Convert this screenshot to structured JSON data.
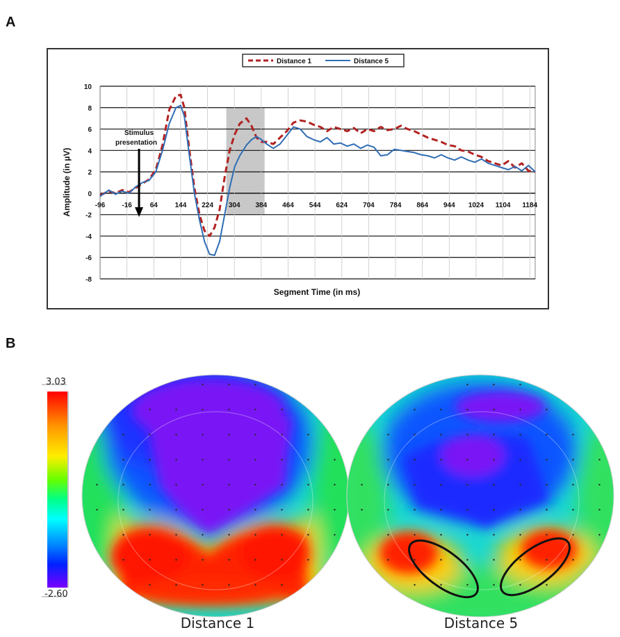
{
  "panels": {
    "a_label": "A",
    "b_label": "B"
  },
  "chart_data": {
    "type": "line",
    "xlabel": "Segment Time (in ms)",
    "ylabel": "Amplitude (in µV)",
    "xlim": [
      -96,
      1200
    ],
    "ylim": [
      -8,
      10
    ],
    "yticks": [
      -8,
      -6,
      -4,
      -2,
      0,
      2,
      4,
      6,
      8,
      10
    ],
    "xticks": [
      -96,
      -16,
      64,
      144,
      224,
      304,
      384,
      464,
      544,
      624,
      704,
      784,
      864,
      944,
      1024,
      1104,
      1184
    ],
    "xtick_labels": [
      "-96",
      "-16",
      "64",
      "144",
      "224",
      "304",
      "384",
      "464",
      "544",
      "624",
      "704",
      "784",
      "864",
      "944",
      "1024",
      "1104",
      "1184"
    ],
    "highlight_window": [
      280,
      394
    ],
    "annotation": {
      "line1": "Stimulus",
      "line2": "presentation",
      "x": 20
    },
    "legend_position": "top-center",
    "series": [
      {
        "name": "Distance 1",
        "color": "#b22222",
        "style": "dashed",
        "x": [
          -96,
          -70,
          -50,
          -30,
          -10,
          10,
          30,
          50,
          70,
          90,
          110,
          130,
          144,
          155,
          170,
          185,
          200,
          215,
          230,
          245,
          260,
          275,
          290,
          305,
          320,
          340,
          355,
          370,
          385,
          400,
          420,
          440,
          460,
          480,
          500,
          520,
          540,
          560,
          580,
          600,
          620,
          640,
          660,
          680,
          700,
          720,
          740,
          760,
          780,
          800,
          820,
          840,
          860,
          880,
          900,
          920,
          940,
          960,
          980,
          1000,
          1020,
          1040,
          1060,
          1080,
          1100,
          1120,
          1140,
          1160,
          1180,
          1200
        ],
        "values": [
          -0.2,
          0.2,
          0.0,
          0.3,
          0.1,
          0.5,
          0.9,
          1.3,
          2.2,
          4.5,
          7.8,
          9.1,
          9.2,
          8.0,
          4.0,
          0.5,
          -2.0,
          -3.5,
          -4.0,
          -3.2,
          -1.5,
          1.5,
          4.0,
          5.5,
          6.5,
          7.0,
          6.3,
          5.2,
          4.8,
          4.8,
          4.6,
          5.2,
          5.8,
          6.6,
          6.8,
          6.7,
          6.4,
          6.2,
          5.8,
          6.2,
          6.0,
          5.8,
          6.1,
          5.6,
          6.0,
          5.8,
          6.2,
          5.9,
          6.0,
          6.3,
          6.0,
          5.8,
          5.5,
          5.2,
          5.0,
          4.8,
          4.5,
          4.4,
          4.0,
          3.9,
          3.6,
          3.4,
          3.0,
          2.8,
          2.6,
          3.0,
          2.4,
          2.8,
          2.1,
          2.0
        ]
      },
      {
        "name": "Distance 5",
        "color": "#2f6db5",
        "style": "solid",
        "x": [
          -96,
          -70,
          -50,
          -30,
          -10,
          10,
          30,
          50,
          70,
          90,
          110,
          130,
          144,
          155,
          170,
          185,
          200,
          215,
          230,
          245,
          260,
          275,
          290,
          305,
          320,
          340,
          355,
          370,
          385,
          400,
          420,
          440,
          460,
          480,
          500,
          520,
          540,
          560,
          580,
          600,
          620,
          640,
          660,
          680,
          700,
          720,
          740,
          760,
          780,
          800,
          820,
          840,
          860,
          880,
          900,
          920,
          940,
          960,
          980,
          1000,
          1020,
          1040,
          1060,
          1080,
          1100,
          1120,
          1140,
          1160,
          1180,
          1200
        ],
        "values": [
          -0.3,
          0.3,
          -0.1,
          0.2,
          0.0,
          0.6,
          1.0,
          1.2,
          2.0,
          4.0,
          6.5,
          8.0,
          8.2,
          7.2,
          3.5,
          0.0,
          -2.5,
          -4.5,
          -5.7,
          -5.8,
          -4.5,
          -2.0,
          0.5,
          2.5,
          3.5,
          4.5,
          5.0,
          5.3,
          5.0,
          4.6,
          4.2,
          4.6,
          5.4,
          6.2,
          6.0,
          5.3,
          5.0,
          4.8,
          5.2,
          4.6,
          4.7,
          4.4,
          4.6,
          4.2,
          4.5,
          4.3,
          3.5,
          3.6,
          4.1,
          4.0,
          3.9,
          3.8,
          3.6,
          3.5,
          3.3,
          3.6,
          3.3,
          3.1,
          3.4,
          3.1,
          2.9,
          3.2,
          2.8,
          2.6,
          2.4,
          2.2,
          2.5,
          2.1,
          2.6,
          2.0
        ]
      }
    ]
  },
  "topomap": {
    "scale_max": "3.03",
    "scale_min": "-2.60",
    "left_title": "Distance 1",
    "right_title": "Distance 5"
  }
}
